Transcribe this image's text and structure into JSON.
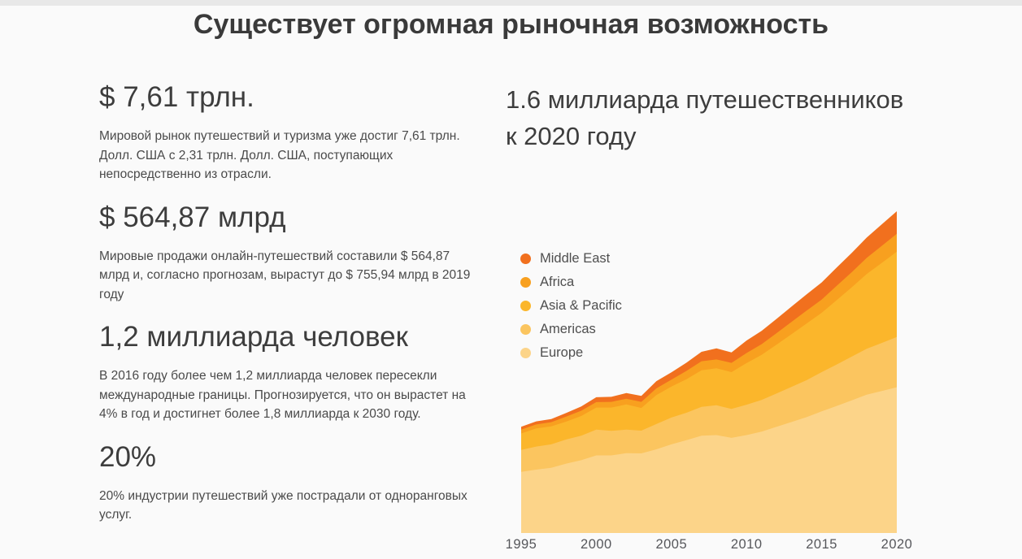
{
  "page": {
    "title": "Существует огромная рыночная возможность",
    "background_color": "#FAFAFA",
    "top_bar_color": "#E8E8E8"
  },
  "stats": [
    {
      "value": "$ 7,61 трлн.",
      "description": "Мировой рынок путешествий и туризма уже достиг 7,61 трлн. Долл. США с 2,31 трлн. Долл. США, поступающих непосредственно из отрасли."
    },
    {
      "value": "$ 564,87 млрд",
      "description": "Мировые продажи онлайн-путешествий составили $ 564,87 млрд и, согласно прогнозам, вырастут до $ 755,94 млрд в 2019 году"
    },
    {
      "value": "1,2 миллиарда человек",
      "description": "В 2016 году более чем 1,2 миллиарда человек пересекли международные границы. Прогнозируется, что он вырастет на 4% в год и достигнет более 1,8 миллиарда к 2030 году."
    },
    {
      "value": "20%",
      "description": "20% индустрии путешествий уже пострадали от одноранговых услуг."
    }
  ],
  "chart_section": {
    "heading": "1.6 миллиарда путешественников к 2020 году"
  },
  "chart_data": {
    "type": "area",
    "stacked": true,
    "title": "",
    "xlabel": "",
    "ylabel": "",
    "grid": false,
    "y_axis_visible": false,
    "legend_position": "top-left",
    "unit": "millions of travelers (values estimated from chart, 2020 total = 1600)",
    "ylim": [
      0,
      1600
    ],
    "x": [
      1995,
      1996,
      1997,
      1998,
      1999,
      2000,
      2001,
      2002,
      2003,
      2004,
      2005,
      2006,
      2007,
      2008,
      2009,
      2010,
      2011,
      2012,
      2013,
      2014,
      2015,
      2016,
      2017,
      2018,
      2019,
      2020
    ],
    "x_tick_labels": [
      "1995",
      "2000",
      "2005",
      "2010",
      "2015",
      "2020"
    ],
    "stack_order_bottom_to_top": [
      "Europe",
      "Americas",
      "Asia & Pacific",
      "Africa",
      "Middle East"
    ],
    "series": [
      {
        "name": "Middle East",
        "color": "#F1701E",
        "values": [
          14,
          15,
          16,
          18,
          21,
          24,
          25,
          28,
          30,
          36,
          36,
          41,
          47,
          55,
          52,
          62,
          66,
          71,
          76,
          81,
          85,
          91,
          96,
          101,
          107,
          112
        ]
      },
      {
        "name": "Africa",
        "color": "#F8A01F",
        "values": [
          19,
          20,
          21,
          25,
          26,
          27,
          28,
          29,
          30,
          33,
          35,
          41,
          45,
          44,
          46,
          50,
          53,
          57,
          61,
          64,
          66,
          71,
          75,
          80,
          85,
          89
        ]
      },
      {
        "name": "Asia & Pacific",
        "color": "#FBB62B",
        "values": [
          82,
          90,
          89,
          89,
          98,
          110,
          116,
          125,
          113,
          144,
          154,
          167,
          182,
          184,
          183,
          207,
          224,
          243,
          262,
          282,
          295,
          320,
          345,
          372,
          398,
          424
        ]
      },
      {
        "name": "Americas",
        "color": "#FBC55F",
        "values": [
          109,
          115,
          117,
          120,
          122,
          128,
          122,
          117,
          113,
          126,
          133,
          136,
          143,
          148,
          144,
          151,
          158,
          166,
          175,
          184,
          195,
          206,
          217,
          228,
          239,
          250
        ]
      },
      {
        "name": "Europe",
        "color": "#FCD489",
        "values": [
          304,
          315,
          324,
          345,
          362,
          386,
          386,
          397,
          396,
          416,
          441,
          462,
          484,
          487,
          473,
          487,
          504,
          528,
          552,
          576,
          605,
          632,
          660,
          688,
          706,
          725
        ]
      }
    ]
  }
}
